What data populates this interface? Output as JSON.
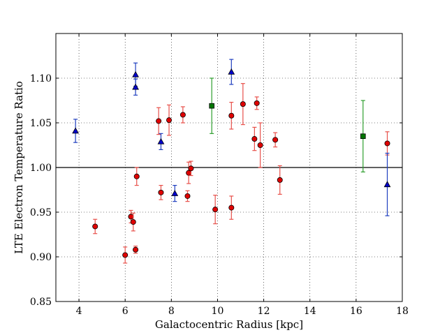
{
  "chart_data": {
    "type": "scatter",
    "title": "",
    "xlabel": "Galactocentric Radius [kpc]",
    "ylabel": "LTE Electron Temperature Ratio",
    "xlim": [
      3,
      18
    ],
    "ylim": [
      0.85,
      1.15
    ],
    "xticks": [
      4,
      6,
      8,
      10,
      12,
      14,
      16,
      18
    ],
    "xtick_labels": [
      "4",
      "6",
      "8",
      "10",
      "12",
      "14",
      "16",
      "18"
    ],
    "yticks": [
      0.85,
      0.9,
      0.95,
      1.0,
      1.05,
      1.1
    ],
    "ytick_labels": [
      "0.85",
      "0.90",
      "0.95",
      "1.00",
      "1.05",
      "1.10"
    ],
    "grid": true,
    "reference_line": 1.0,
    "series": [
      {
        "marker": "circle",
        "color": "#e00000",
        "errorbar_color": "#e8504a",
        "points": [
          {
            "x": 4.7,
            "y": 0.934,
            "err": 0.008
          },
          {
            "x": 6.0,
            "y": 0.902,
            "err": 0.009
          },
          {
            "x": 6.25,
            "y": 0.945,
            "err": 0.007
          },
          {
            "x": 6.35,
            "y": 0.939,
            "err": 0.01
          },
          {
            "x": 6.45,
            "y": 0.908,
            "err": 0.004
          },
          {
            "x": 6.5,
            "y": 0.99,
            "err": 0.01
          },
          {
            "x": 7.45,
            "y": 1.052,
            "err": 0.015
          },
          {
            "x": 7.55,
            "y": 0.972,
            "err": 0.008
          },
          {
            "x": 7.9,
            "y": 1.053,
            "err": 0.017
          },
          {
            "x": 8.5,
            "y": 1.059,
            "err": 0.009
          },
          {
            "x": 8.7,
            "y": 0.968,
            "err": 0.006
          },
          {
            "x": 8.75,
            "y": 0.994,
            "err": 0.012
          },
          {
            "x": 8.85,
            "y": 0.999,
            "err": 0.008
          },
          {
            "x": 9.9,
            "y": 0.953,
            "err": 0.016
          },
          {
            "x": 10.6,
            "y": 0.955,
            "err": 0.013
          },
          {
            "x": 10.6,
            "y": 1.058,
            "err": 0.015
          },
          {
            "x": 11.1,
            "y": 1.071,
            "err": 0.023
          },
          {
            "x": 11.6,
            "y": 1.032,
            "err": 0.013
          },
          {
            "x": 11.7,
            "y": 1.072,
            "err": 0.007
          },
          {
            "x": 11.85,
            "y": 1.025,
            "err": 0.025
          },
          {
            "x": 12.5,
            "y": 1.031,
            "err": 0.008
          },
          {
            "x": 12.7,
            "y": 0.986,
            "err": 0.016
          },
          {
            "x": 17.35,
            "y": 1.027,
            "err": 0.013
          }
        ]
      },
      {
        "marker": "triangle",
        "color": "#0000cc",
        "errorbar_color": "#1f3fbf",
        "points": [
          {
            "x": 3.85,
            "y": 1.041,
            "err": 0.013
          },
          {
            "x": 6.45,
            "y": 1.104,
            "err": 0.013
          },
          {
            "x": 6.45,
            "y": 1.09,
            "err": 0.009
          },
          {
            "x": 7.55,
            "y": 1.029,
            "err": 0.009
          },
          {
            "x": 8.15,
            "y": 0.971,
            "err": 0.009
          },
          {
            "x": 10.6,
            "y": 1.107,
            "err": 0.014
          },
          {
            "x": 17.35,
            "y": 0.981,
            "err": 0.035
          }
        ]
      },
      {
        "marker": "square",
        "color": "#007700",
        "errorbar_color": "#2e9e2e",
        "points": [
          {
            "x": 9.75,
            "y": 1.069,
            "err": 0.031
          },
          {
            "x": 16.3,
            "y": 1.035,
            "err": 0.04
          }
        ]
      }
    ]
  }
}
